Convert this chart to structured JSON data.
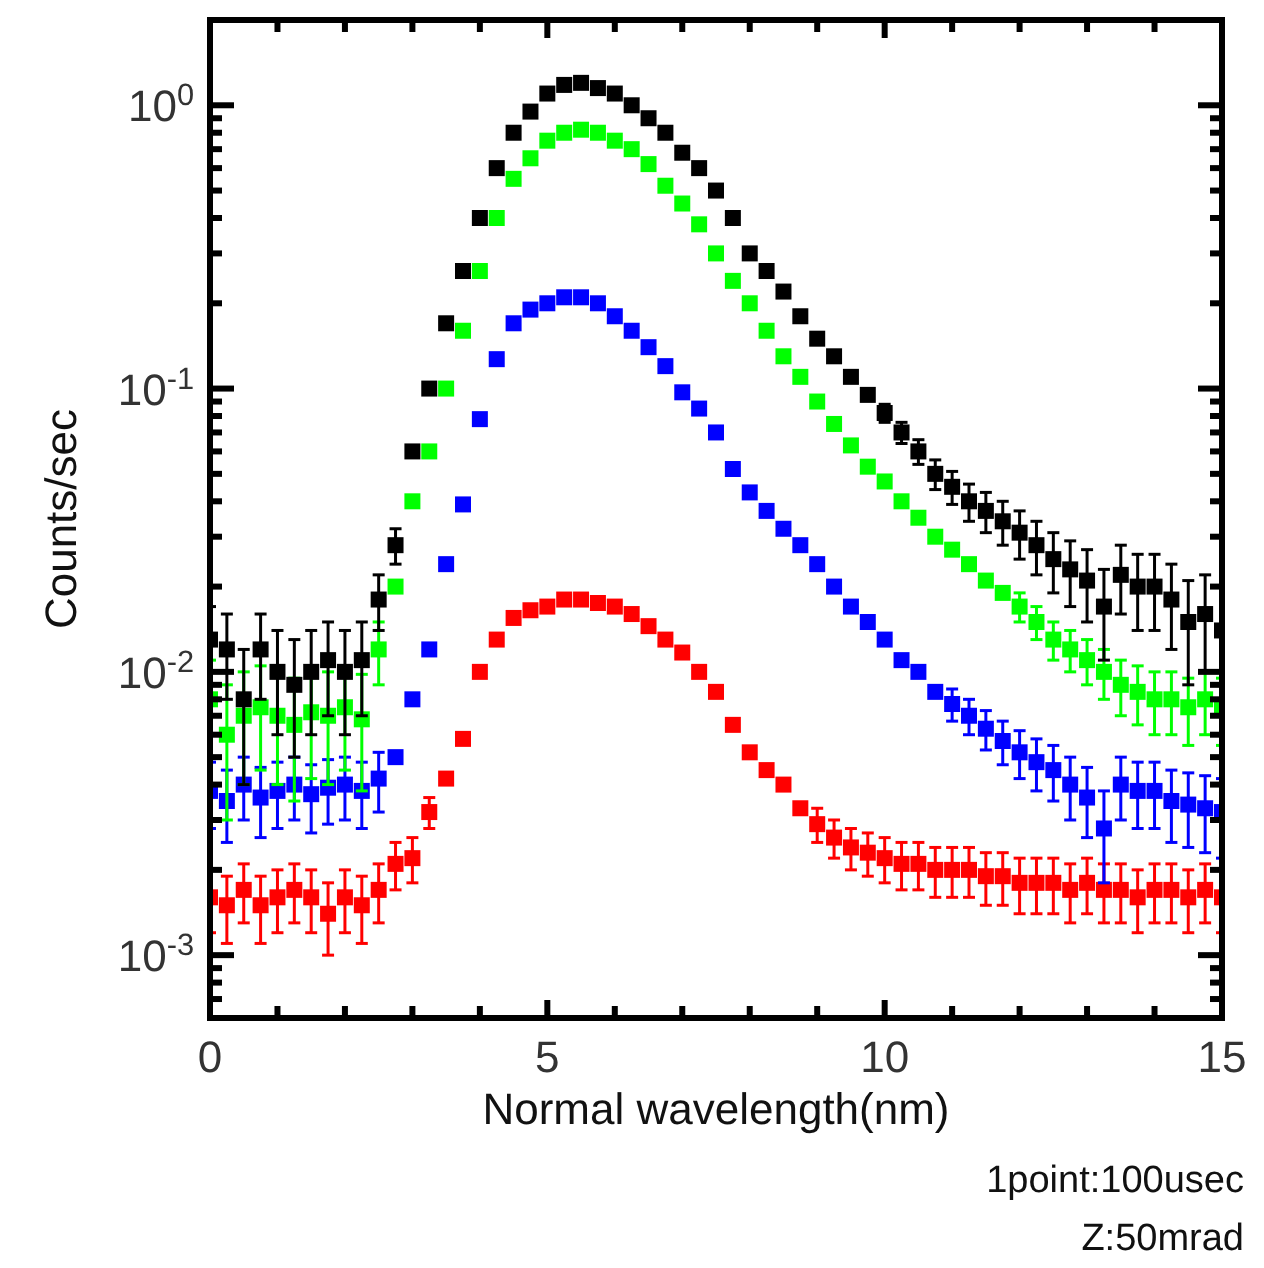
{
  "chart_data": {
    "type": "scatter",
    "xlabel": "Normal wavelength(nm)",
    "ylabel": "Counts/sec",
    "annotations": [
      "1point:100usec",
      "Z:50mrad"
    ],
    "log": "y",
    "marker": "square",
    "grid": false,
    "xlim": [
      0,
      15
    ],
    "ylim": [
      0.0006,
      2
    ],
    "xticks": [
      0,
      {
        "value": 1,
        "label": null
      },
      {
        "value": 2,
        "label": null
      },
      {
        "value": 3,
        "label": null
      },
      {
        "value": 4,
        "label": null
      },
      5,
      {
        "value": 6,
        "label": null
      },
      {
        "value": 7,
        "label": null
      },
      {
        "value": 8,
        "label": null
      },
      {
        "value": 9,
        "label": null
      },
      10,
      {
        "value": 11,
        "label": null
      },
      {
        "value": 12,
        "label": null
      },
      {
        "value": 13,
        "label": null
      },
      {
        "value": 14,
        "label": null
      },
      15
    ],
    "yticks": [
      {
        "value": 0.0007,
        "label": null
      },
      {
        "value": 0.0008,
        "label": null
      },
      {
        "value": 0.0009,
        "label": null
      },
      {
        "value": 0.001,
        "label": "10$^{-3}$"
      },
      {
        "value": 0.002,
        "label": null
      },
      {
        "value": 0.003,
        "label": null
      },
      {
        "value": 0.004,
        "label": null
      },
      {
        "value": 0.005,
        "label": null
      },
      {
        "value": 0.006,
        "label": null
      },
      {
        "value": 0.007,
        "label": null
      },
      {
        "value": 0.008,
        "label": null
      },
      {
        "value": 0.009,
        "label": null
      },
      {
        "value": 0.01,
        "label": "10$^{-2}$"
      },
      {
        "value": 0.02,
        "label": null
      },
      {
        "value": 0.03,
        "label": null
      },
      {
        "value": 0.04,
        "label": null
      },
      {
        "value": 0.05,
        "label": null
      },
      {
        "value": 0.06,
        "label": null
      },
      {
        "value": 0.07,
        "label": null
      },
      {
        "value": 0.08,
        "label": null
      },
      {
        "value": 0.09,
        "label": null
      },
      {
        "value": 0.1,
        "label": "10$^{-1}$"
      },
      {
        "value": 0.2,
        "label": null
      },
      {
        "value": 0.3,
        "label": null
      },
      {
        "value": 0.4,
        "label": null
      },
      {
        "value": 0.5,
        "label": null
      },
      {
        "value": 0.6,
        "label": null
      },
      {
        "value": 0.7,
        "label": null
      },
      {
        "value": 0.8,
        "label": null
      },
      {
        "value": 0.9,
        "label": null
      },
      {
        "value": 1,
        "label": "10$^{0}$"
      },
      {
        "value": 2,
        "label": null
      }
    ],
    "x": [
      0,
      0.25,
      0.5,
      0.75,
      1,
      1.25,
      1.5,
      1.75,
      2,
      2.25,
      2.5,
      2.75,
      3,
      3.25,
      3.5,
      3.75,
      4,
      4.25,
      4.5,
      4.75,
      5,
      5.25,
      5.5,
      5.75,
      6,
      6.25,
      6.5,
      6.75,
      7,
      7.25,
      7.5,
      7.75,
      8,
      8.25,
      8.5,
      8.75,
      9,
      9.25,
      9.5,
      9.75,
      10,
      10.25,
      10.5,
      10.75,
      11,
      11.25,
      11.5,
      11.75,
      12,
      12.25,
      12.5,
      12.75,
      13,
      13.25,
      13.5,
      13.75,
      14,
      14.25,
      14.5,
      14.75,
      15
    ],
    "series": [
      {
        "color": "#ff0000",
        "values": [
          0.0016,
          0.0015,
          0.0017,
          0.0015,
          0.0016,
          0.0017,
          0.0016,
          0.0014,
          0.0016,
          0.0015,
          0.0017,
          0.0021,
          0.0022,
          0.0032,
          0.0042,
          0.0058,
          0.01,
          0.013,
          0.0155,
          0.0165,
          0.017,
          0.018,
          0.018,
          0.0175,
          0.017,
          0.016,
          0.0145,
          0.013,
          0.0117,
          0.01,
          0.0085,
          0.0065,
          0.0052,
          0.0045,
          0.004,
          0.0033,
          0.0029,
          0.0026,
          0.0024,
          0.0023,
          0.0022,
          0.0021,
          0.0021,
          0.002,
          0.002,
          0.002,
          0.0019,
          0.0019,
          0.0018,
          0.0018,
          0.0018,
          0.0017,
          0.0018,
          0.0017,
          0.0017,
          0.0016,
          0.0017,
          0.0017,
          0.0016,
          0.0017,
          0.0016
        ],
        "errors": [
          0.0004,
          0.0004,
          0.0004,
          0.0004,
          0.0004,
          0.0004,
          0.0004,
          0.0004,
          0.0004,
          0.0004,
          0.0004,
          0.0004,
          0.0004,
          0.0004,
          null,
          null,
          null,
          null,
          null,
          null,
          null,
          null,
          null,
          null,
          null,
          null,
          null,
          null,
          null,
          null,
          null,
          null,
          null,
          null,
          null,
          null,
          0.0004,
          0.0004,
          0.0004,
          0.0004,
          0.0004,
          0.0004,
          0.0004,
          0.0004,
          0.0004,
          0.0004,
          0.0004,
          0.0004,
          0.0004,
          0.0004,
          0.0004,
          0.0004,
          0.0004,
          0.0004,
          0.0004,
          0.0004,
          0.0004,
          0.0004,
          0.0004,
          0.0004,
          0.0004
        ]
      },
      {
        "color": "#0000ff",
        "values": [
          0.0038,
          0.0035,
          0.004,
          0.0036,
          0.0038,
          0.004,
          0.0037,
          0.0039,
          0.004,
          0.0038,
          0.0042,
          0.005,
          0.008,
          0.012,
          0.024,
          0.039,
          0.078,
          0.127,
          0.17,
          0.19,
          0.2,
          0.21,
          0.21,
          0.2,
          0.18,
          0.16,
          0.14,
          0.12,
          0.097,
          0.085,
          0.07,
          0.052,
          0.043,
          0.037,
          0.032,
          0.028,
          0.024,
          0.02,
          0.017,
          0.015,
          0.013,
          0.011,
          0.01,
          0.0085,
          0.0077,
          0.007,
          0.0063,
          0.0057,
          0.0052,
          0.0048,
          0.0045,
          0.004,
          0.0036,
          0.0028,
          0.004,
          0.0038,
          0.0038,
          0.0035,
          0.0034,
          0.0033,
          0.0032
        ],
        "errors": [
          0.001,
          0.001,
          0.001,
          0.001,
          0.001,
          0.001,
          0.001,
          0.001,
          0.001,
          0.001,
          0.001,
          null,
          null,
          null,
          null,
          null,
          null,
          null,
          null,
          null,
          null,
          null,
          null,
          null,
          null,
          null,
          null,
          null,
          null,
          null,
          null,
          null,
          null,
          null,
          null,
          null,
          null,
          null,
          null,
          null,
          null,
          null,
          null,
          null,
          0.001,
          0.001,
          0.001,
          0.001,
          0.001,
          0.001,
          0.001,
          0.001,
          0.001,
          0.001,
          0.001,
          0.001,
          0.001,
          0.001,
          0.001,
          0.001,
          0.001
        ]
      },
      {
        "color": "#00ff00",
        "values": [
          0.008,
          0.006,
          0.007,
          0.0075,
          0.007,
          0.0065,
          0.0072,
          0.007,
          0.0075,
          0.0068,
          0.012,
          0.02,
          0.04,
          0.06,
          0.1,
          0.16,
          0.26,
          0.4,
          0.55,
          0.65,
          0.75,
          0.8,
          0.82,
          0.8,
          0.75,
          0.7,
          0.62,
          0.52,
          0.45,
          0.38,
          0.3,
          0.24,
          0.2,
          0.16,
          0.13,
          0.11,
          0.09,
          0.075,
          0.063,
          0.053,
          0.047,
          0.04,
          0.035,
          0.03,
          0.027,
          0.024,
          0.021,
          0.019,
          0.017,
          0.015,
          0.013,
          0.012,
          0.011,
          0.01,
          0.009,
          0.0085,
          0.008,
          0.008,
          0.0075,
          0.008,
          0.0075
        ],
        "errors": [
          0.003,
          0.003,
          0.003,
          0.003,
          0.003,
          0.003,
          0.003,
          0.003,
          0.003,
          0.003,
          0.003,
          null,
          null,
          null,
          null,
          null,
          null,
          null,
          null,
          null,
          null,
          null,
          null,
          null,
          null,
          null,
          null,
          null,
          null,
          null,
          null,
          null,
          null,
          null,
          null,
          null,
          null,
          null,
          null,
          null,
          null,
          null,
          null,
          null,
          null,
          null,
          null,
          null,
          0.002,
          0.002,
          0.002,
          0.002,
          0.002,
          0.002,
          0.002,
          0.002,
          0.002,
          0.002,
          0.002,
          0.002,
          0.002
        ]
      },
      {
        "color": "#000000",
        "values": [
          0.013,
          0.012,
          0.008,
          0.012,
          0.01,
          0.009,
          0.01,
          0.011,
          0.01,
          0.011,
          0.018,
          0.028,
          0.06,
          0.1,
          0.17,
          0.26,
          0.4,
          0.6,
          0.8,
          0.95,
          1.1,
          1.18,
          1.2,
          1.15,
          1.1,
          1.0,
          0.9,
          0.8,
          0.68,
          0.6,
          0.5,
          0.4,
          0.3,
          0.26,
          0.22,
          0.18,
          0.15,
          0.13,
          0.11,
          0.095,
          0.082,
          0.07,
          0.06,
          0.05,
          0.045,
          0.04,
          0.037,
          0.034,
          0.031,
          0.028,
          0.025,
          0.023,
          0.021,
          0.017,
          0.022,
          0.02,
          0.02,
          0.018,
          0.015,
          0.016,
          0.014
        ],
        "errors": [
          0.004,
          0.004,
          0.004,
          0.004,
          0.004,
          0.004,
          0.004,
          0.004,
          0.004,
          0.004,
          0.004,
          0.004,
          null,
          null,
          null,
          null,
          null,
          null,
          null,
          null,
          null,
          null,
          null,
          null,
          null,
          null,
          null,
          null,
          null,
          null,
          null,
          null,
          null,
          null,
          null,
          null,
          null,
          null,
          null,
          null,
          0.006,
          0.006,
          0.006,
          0.006,
          0.006,
          0.006,
          0.006,
          0.006,
          0.006,
          0.006,
          0.006,
          0.006,
          0.006,
          0.006,
          0.006,
          0.006,
          0.006,
          0.006,
          0.006,
          0.006,
          0.006
        ]
      }
    ]
  }
}
